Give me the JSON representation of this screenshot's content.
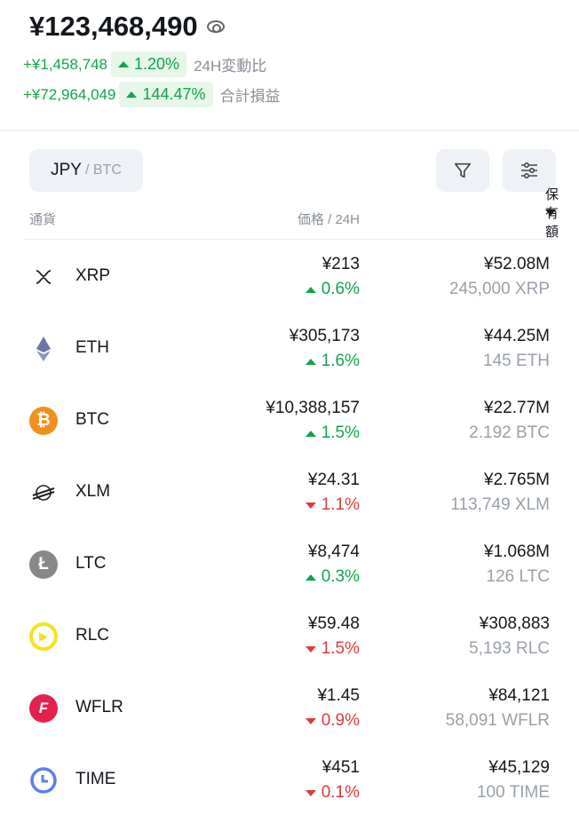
{
  "summary": {
    "total": "¥123,468,490",
    "change_24h": "+¥1,458,748",
    "change_24h_pct": "1.20%",
    "change_24h_label": "24H変動比",
    "pnl": "+¥72,964,049",
    "pnl_pct": "144.47%",
    "pnl_label": "合計損益"
  },
  "toggle": {
    "primary": "JPY",
    "secondary": "/ BTC"
  },
  "header": {
    "currency": "通貨",
    "price": "価格 / 24H",
    "holding": "保有額"
  },
  "colors": {
    "up": "#13a34a",
    "down": "#e03a3a"
  },
  "rows": [
    {
      "symbol": "XRP",
      "icon": "xrp-icon",
      "price": "¥213",
      "change": "0.6%",
      "dir": "up",
      "value": "¥52.08M",
      "qty": "245,000 XRP"
    },
    {
      "symbol": "ETH",
      "icon": "eth-icon",
      "price": "¥305,173",
      "change": "1.6%",
      "dir": "up",
      "value": "¥44.25M",
      "qty": "145 ETH"
    },
    {
      "symbol": "BTC",
      "icon": "btc-icon",
      "price": "¥10,388,157",
      "change": "1.5%",
      "dir": "up",
      "value": "¥22.77M",
      "qty": "2.192 BTC"
    },
    {
      "symbol": "XLM",
      "icon": "xlm-icon",
      "price": "¥24.31",
      "change": "1.1%",
      "dir": "down",
      "value": "¥2.765M",
      "qty": "113,749 XLM"
    },
    {
      "symbol": "LTC",
      "icon": "ltc-icon",
      "price": "¥8,474",
      "change": "0.3%",
      "dir": "up",
      "value": "¥1.068M",
      "qty": "126 LTC"
    },
    {
      "symbol": "RLC",
      "icon": "rlc-icon",
      "price": "¥59.48",
      "change": "1.5%",
      "dir": "down",
      "value": "¥308,883",
      "qty": "5,193 RLC"
    },
    {
      "symbol": "WFLR",
      "icon": "wflr-icon",
      "price": "¥1.45",
      "change": "0.9%",
      "dir": "down",
      "value": "¥84,121",
      "qty": "58,091 WFLR"
    },
    {
      "symbol": "TIME",
      "icon": "time-icon",
      "price": "¥451",
      "change": "0.1%",
      "dir": "down",
      "value": "¥45,129",
      "qty": "100 TIME"
    }
  ]
}
